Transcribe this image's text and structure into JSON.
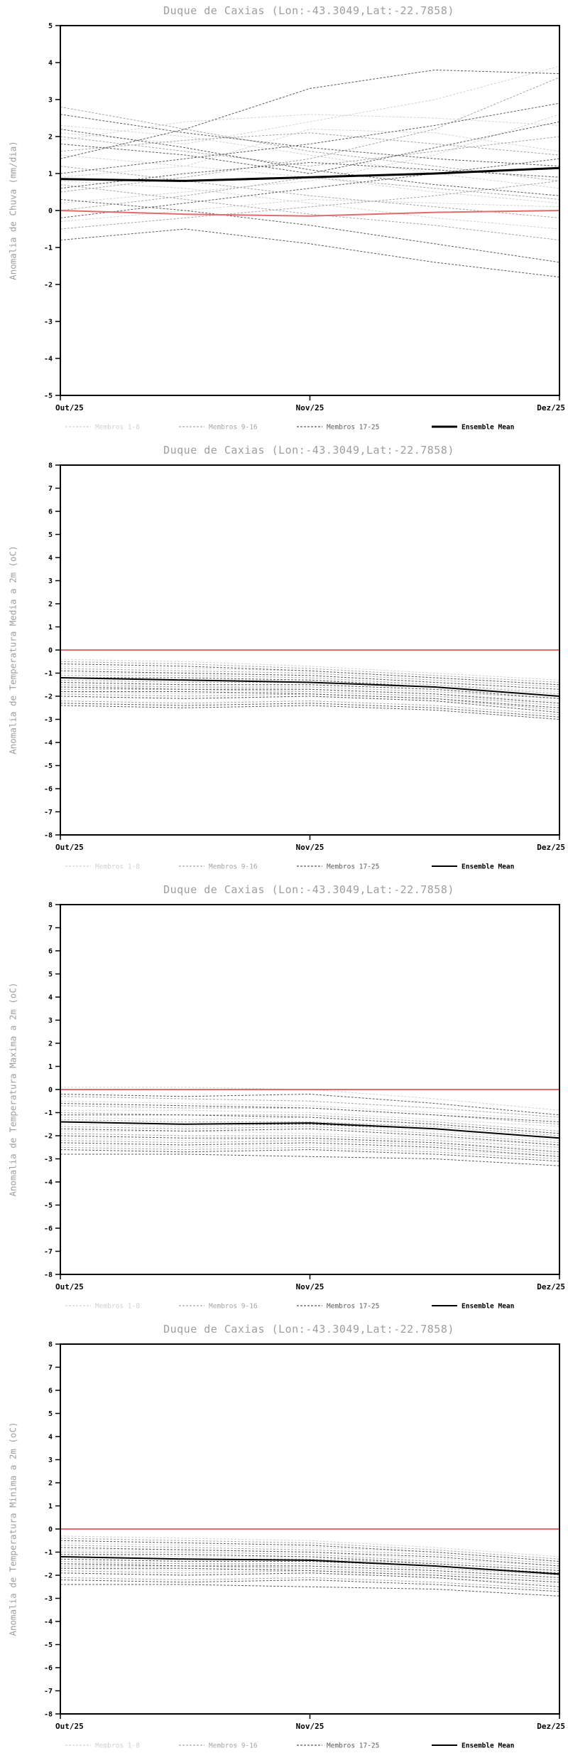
{
  "chart_data": [
    {
      "id": "precipitation-anomaly",
      "type": "line",
      "title": "Duque de Caxias (Lon:-43.3049,Lat:-22.7858)",
      "ylabel": "Anomalia de Chuva (mm/dia)",
      "ylim": [
        -5,
        5
      ],
      "ytick_step": 1,
      "grid": false,
      "legend_position": "bottom",
      "x": [
        0,
        0.5,
        1,
        1.5,
        2
      ],
      "x_ticks": [
        {
          "pos": 0,
          "label": "Out/25"
        },
        {
          "pos": 1,
          "label": "Nov/25"
        },
        {
          "pos": 2,
          "label": "Dez/25"
        }
      ],
      "zero_line": {
        "color": "#e06c6c",
        "values": [
          0,
          -0.1,
          -0.15,
          -0.05,
          0
        ]
      },
      "groups": [
        {
          "name": "Membros 1-8",
          "color": "#d2d2d2",
          "members": [
            [
              2.1,
              1.8,
              2.4,
              3.0,
              3.9
            ],
            [
              0.9,
              1.2,
              2.2,
              2.1,
              1.6
            ],
            [
              2.3,
              2.0,
              1.5,
              1.0,
              0.6
            ],
            [
              0.2,
              0.5,
              0.8,
              1.5,
              2.6
            ],
            [
              1.5,
              1.2,
              0.9,
              0.5,
              0.2
            ],
            [
              -0.3,
              0.0,
              0.3,
              0.2,
              0.1
            ],
            [
              0.8,
              0.6,
              0.2,
              -0.2,
              -0.5
            ],
            [
              1.9,
              2.4,
              2.6,
              2.5,
              2.3
            ]
          ]
        },
        {
          "name": "Membros 9-16",
          "color": "#a6a6a6",
          "members": [
            [
              2.8,
              2.2,
              1.6,
              1.2,
              0.8
            ],
            [
              0.5,
              0.9,
              1.4,
              2.2,
              3.6
            ],
            [
              1.2,
              0.8,
              0.4,
              0.1,
              -0.2
            ],
            [
              -0.5,
              -0.2,
              0.1,
              0.4,
              0.8
            ],
            [
              2.0,
              1.6,
              1.2,
              1.6,
              2.0
            ],
            [
              0.0,
              0.4,
              0.9,
              0.6,
              0.3
            ],
            [
              1.6,
              1.9,
              2.1,
              1.8,
              1.5
            ],
            [
              0.7,
              0.3,
              -0.1,
              -0.4,
              -0.8
            ]
          ]
        },
        {
          "name": "Membros 17-25",
          "color": "#5c5c5c",
          "members": [
            [
              1.4,
              2.2,
              3.3,
              3.8,
              3.7
            ],
            [
              2.6,
              2.1,
              1.7,
              1.4,
              1.2
            ],
            [
              0.3,
              0.0,
              -0.4,
              -0.9,
              -1.4
            ],
            [
              -0.8,
              -0.5,
              -0.9,
              -1.4,
              -1.8
            ],
            [
              1.0,
              1.4,
              1.8,
              2.3,
              2.9
            ],
            [
              0.6,
              1.0,
              1.3,
              1.1,
              0.9
            ],
            [
              2.2,
              1.7,
              1.1,
              0.7,
              0.4
            ],
            [
              -0.2,
              0.2,
              0.6,
              1.0,
              1.4
            ],
            [
              1.8,
              1.5,
              1.0,
              1.7,
              2.4
            ]
          ]
        }
      ],
      "mean": {
        "name": "Ensemble Mean",
        "color": "#000000",
        "width": 3,
        "values": [
          0.85,
          0.8,
          0.9,
          1.0,
          1.15
        ]
      }
    },
    {
      "id": "mean-temperature-anomaly",
      "type": "line",
      "title": "Duque de Caxias (Lon:-43.3049,Lat:-22.7858)",
      "ylabel": "Anomalia de Temperatura Media a 2m (oC)",
      "ylim": [
        -8,
        8
      ],
      "ytick_step": 1,
      "grid": false,
      "legend_position": "bottom",
      "x": [
        0,
        0.5,
        1,
        1.5,
        2
      ],
      "x_ticks": [
        {
          "pos": 0,
          "label": "Out/25"
        },
        {
          "pos": 1,
          "label": "Nov/25"
        },
        {
          "pos": 2,
          "label": "Dez/25"
        }
      ],
      "zero_line": {
        "color": "#e06c6c",
        "values": [
          0,
          0,
          0,
          0,
          0
        ]
      },
      "groups": [
        {
          "name": "Membros 1-8",
          "color": "#d2d2d2",
          "members": [
            [
              -0.4,
              -0.5,
              -0.7,
              -1.0,
              -1.3
            ],
            [
              -0.7,
              -0.8,
              -0.9,
              -1.2,
              -1.5
            ],
            [
              -1.0,
              -1.0,
              -1.1,
              -1.4,
              -1.7
            ],
            [
              -1.2,
              -1.3,
              -1.3,
              -1.5,
              -1.8
            ],
            [
              -1.4,
              -1.5,
              -1.5,
              -1.7,
              -2.0
            ],
            [
              -1.6,
              -1.6,
              -1.7,
              -1.9,
              -2.2
            ],
            [
              -1.8,
              -1.9,
              -1.8,
              -2.0,
              -2.3
            ],
            [
              -2.0,
              -2.1,
              -2.0,
              -2.2,
              -2.5
            ]
          ]
        },
        {
          "name": "Membros 9-16",
          "color": "#a6a6a6",
          "members": [
            [
              -0.5,
              -0.6,
              -0.8,
              -1.1,
              -1.4
            ],
            [
              -0.8,
              -0.9,
              -1.0,
              -1.3,
              -1.6
            ],
            [
              -1.1,
              -1.1,
              -1.2,
              -1.5,
              -1.9
            ],
            [
              -1.3,
              -1.4,
              -1.4,
              -1.6,
              -2.0
            ],
            [
              -1.5,
              -1.6,
              -1.6,
              -1.8,
              -2.1
            ],
            [
              -1.7,
              -1.7,
              -1.8,
              -2.0,
              -2.4
            ],
            [
              -1.9,
              -2.0,
              -1.9,
              -2.1,
              -2.6
            ],
            [
              -2.2,
              -2.3,
              -2.2,
              -2.4,
              -2.8
            ]
          ]
        },
        {
          "name": "Membros 17-25",
          "color": "#5c5c5c",
          "members": [
            [
              -0.6,
              -0.7,
              -0.9,
              -1.2,
              -1.5
            ],
            [
              -0.9,
              -1.0,
              -1.1,
              -1.4,
              -1.7
            ],
            [
              -1.2,
              -1.2,
              -1.3,
              -1.6,
              -2.0
            ],
            [
              -1.4,
              -1.5,
              -1.5,
              -1.7,
              -2.1
            ],
            [
              -1.6,
              -1.7,
              -1.7,
              -1.9,
              -2.3
            ],
            [
              -1.8,
              -1.8,
              -1.9,
              -2.1,
              -2.5
            ],
            [
              -2.0,
              -2.1,
              -2.0,
              -2.2,
              -2.7
            ],
            [
              -2.3,
              -2.4,
              -2.3,
              -2.5,
              -2.9
            ],
            [
              -2.4,
              -2.5,
              -2.4,
              -2.6,
              -3.0
            ]
          ]
        }
      ],
      "mean": {
        "name": "Ensemble Mean",
        "color": "#000000",
        "width": 2,
        "values": [
          -1.2,
          -1.3,
          -1.4,
          -1.6,
          -2.0
        ]
      }
    },
    {
      "id": "max-temperature-anomaly",
      "type": "line",
      "title": "Duque de Caxias (Lon:-43.3049,Lat:-22.7858)",
      "ylabel": "Anomalia de Temperatura Maxima a 2m (oC)",
      "ylim": [
        -8,
        8
      ],
      "ytick_step": 1,
      "grid": false,
      "legend_position": "bottom",
      "x": [
        0,
        0.5,
        1,
        1.5,
        2
      ],
      "x_ticks": [
        {
          "pos": 0,
          "label": "Out/25"
        },
        {
          "pos": 1,
          "label": "Nov/25"
        },
        {
          "pos": 2,
          "label": "Dez/25"
        }
      ],
      "zero_line": {
        "color": "#e06c6c",
        "values": [
          0,
          0,
          0,
          0,
          0
        ]
      },
      "groups": [
        {
          "name": "Membros 1-8",
          "color": "#d2d2d2",
          "members": [
            [
              0.1,
              0.1,
              0.0,
              -0.4,
              -0.9
            ],
            [
              -0.5,
              -0.6,
              -0.7,
              -1.0,
              -1.3
            ],
            [
              -0.9,
              -0.9,
              -1.0,
              -1.3,
              -1.6
            ],
            [
              -1.2,
              -1.3,
              -1.2,
              -1.5,
              -1.9
            ],
            [
              -1.5,
              -1.6,
              -1.5,
              -1.8,
              -2.2
            ],
            [
              -1.8,
              -1.8,
              -1.9,
              -2.1,
              -2.4
            ],
            [
              -2.1,
              -2.2,
              -2.1,
              -2.3,
              -2.6
            ],
            [
              -2.4,
              -2.5,
              -2.4,
              -2.6,
              -2.9
            ]
          ]
        },
        {
          "name": "Membros 9-16",
          "color": "#a6a6a6",
          "members": [
            [
              -0.3,
              -0.4,
              -0.5,
              -0.8,
              -1.2
            ],
            [
              -0.7,
              -0.8,
              -0.8,
              -1.1,
              -1.5
            ],
            [
              -1.0,
              -1.1,
              -1.1,
              -1.4,
              -1.8
            ],
            [
              -1.3,
              -1.4,
              -1.4,
              -1.6,
              -2.0
            ],
            [
              -1.6,
              -1.7,
              -1.6,
              -1.9,
              -2.3
            ],
            [
              -1.9,
              -2.0,
              -2.0,
              -2.2,
              -2.5
            ],
            [
              -2.2,
              -2.3,
              -2.2,
              -2.4,
              -2.8
            ],
            [
              -2.5,
              -2.6,
              -2.5,
              -2.7,
              -3.0
            ]
          ]
        },
        {
          "name": "Membros 17-25",
          "color": "#5c5c5c",
          "members": [
            [
              -0.2,
              -0.3,
              -0.2,
              -0.6,
              -1.1
            ],
            [
              -0.6,
              -0.7,
              -0.8,
              -1.1,
              -1.4
            ],
            [
              -1.1,
              -1.1,
              -1.2,
              -1.5,
              -1.9
            ],
            [
              -1.4,
              -1.5,
              -1.5,
              -1.7,
              -2.1
            ],
            [
              -1.7,
              -1.8,
              -1.7,
              -2.0,
              -2.4
            ],
            [
              -2.0,
              -2.1,
              -2.1,
              -2.3,
              -2.7
            ],
            [
              -2.3,
              -2.4,
              -2.3,
              -2.5,
              -2.9
            ],
            [
              -2.6,
              -2.7,
              -2.6,
              -2.8,
              -3.1
            ],
            [
              -2.8,
              -2.8,
              -2.9,
              -3.0,
              -3.3
            ]
          ]
        }
      ],
      "mean": {
        "name": "Ensemble Mean",
        "color": "#000000",
        "width": 2,
        "values": [
          -1.4,
          -1.5,
          -1.45,
          -1.7,
          -2.1
        ]
      }
    },
    {
      "id": "min-temperature-anomaly",
      "type": "line",
      "title": "Duque de Caxias (Lon:-43.3049,Lat:-22.7858)",
      "ylabel": "Anomalia de Temperatura Minima a 2m (oC)",
      "ylim": [
        -8,
        8
      ],
      "ytick_step": 1,
      "grid": false,
      "legend_position": "bottom",
      "x": [
        0,
        0.5,
        1,
        1.5,
        2
      ],
      "x_ticks": [
        {
          "pos": 0,
          "label": "Out/25"
        },
        {
          "pos": 1,
          "label": "Nov/25"
        },
        {
          "pos": 2,
          "label": "Dez/25"
        }
      ],
      "zero_line": {
        "color": "#e06c6c",
        "values": [
          0,
          0,
          0,
          0,
          0
        ]
      },
      "groups": [
        {
          "name": "Membros 1-8",
          "color": "#d2d2d2",
          "members": [
            [
              -0.3,
              -0.4,
              -0.5,
              -0.8,
              -1.2
            ],
            [
              -0.6,
              -0.7,
              -0.8,
              -1.0,
              -1.4
            ],
            [
              -0.9,
              -0.9,
              -1.0,
              -1.3,
              -1.6
            ],
            [
              -1.1,
              -1.2,
              -1.2,
              -1.4,
              -1.7
            ],
            [
              -1.3,
              -1.4,
              -1.4,
              -1.6,
              -1.9
            ],
            [
              -1.5,
              -1.5,
              -1.6,
              -1.8,
              -2.1
            ],
            [
              -1.7,
              -1.8,
              -1.7,
              -1.9,
              -2.2
            ],
            [
              -1.9,
              -2.0,
              -1.9,
              -2.1,
              -2.4
            ]
          ]
        },
        {
          "name": "Membros 9-16",
          "color": "#a6a6a6",
          "members": [
            [
              -0.4,
              -0.5,
              -0.6,
              -0.9,
              -1.3
            ],
            [
              -0.7,
              -0.8,
              -0.9,
              -1.1,
              -1.5
            ],
            [
              -1.0,
              -1.0,
              -1.1,
              -1.4,
              -1.7
            ],
            [
              -1.2,
              -1.3,
              -1.3,
              -1.5,
              -1.8
            ],
            [
              -1.4,
              -1.5,
              -1.5,
              -1.7,
              -2.0
            ],
            [
              -1.6,
              -1.6,
              -1.7,
              -1.9,
              -2.2
            ],
            [
              -1.8,
              -1.9,
              -1.8,
              -2.0,
              -2.3
            ],
            [
              -2.1,
              -2.2,
              -2.1,
              -2.3,
              -2.6
            ]
          ]
        },
        {
          "name": "Membros 17-25",
          "color": "#5c5c5c",
          "members": [
            [
              -0.5,
              -0.6,
              -0.7,
              -1.0,
              -1.4
            ],
            [
              -0.8,
              -0.9,
              -1.0,
              -1.2,
              -1.6
            ],
            [
              -1.1,
              -1.1,
              -1.2,
              -1.5,
              -1.8
            ],
            [
              -1.3,
              -1.4,
              -1.4,
              -1.6,
              -1.9
            ],
            [
              -1.5,
              -1.6,
              -1.6,
              -1.8,
              -2.1
            ],
            [
              -1.7,
              -1.7,
              -1.8,
              -2.0,
              -2.3
            ],
            [
              -1.9,
              -2.0,
              -1.9,
              -2.1,
              -2.5
            ],
            [
              -2.2,
              -2.3,
              -2.2,
              -2.4,
              -2.7
            ],
            [
              -2.4,
              -2.4,
              -2.5,
              -2.6,
              -2.9
            ]
          ]
        }
      ],
      "mean": {
        "name": "Ensemble Mean",
        "color": "#000000",
        "width": 2,
        "values": [
          -1.2,
          -1.3,
          -1.35,
          -1.6,
          -1.95
        ]
      }
    }
  ]
}
